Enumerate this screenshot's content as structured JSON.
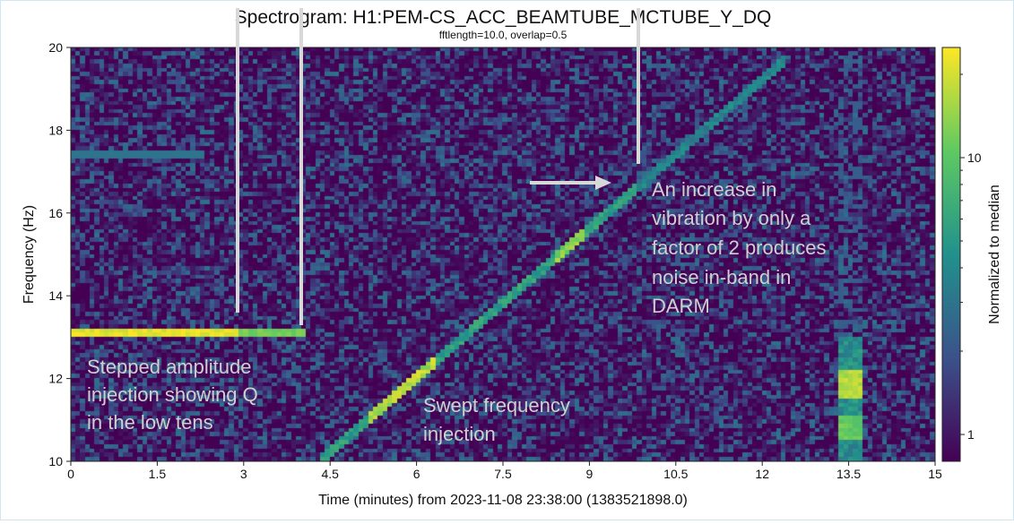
{
  "chart_data": {
    "type": "heatmap",
    "title": "Spectrogram: H1:PEM-CS_ACC_BEAMTUBE_MCTUBE_Y_DQ",
    "subtitle": "fftlength=10.0, overlap=0.5",
    "xlabel": "Time (minutes) from 2023-11-08 23:38:00 (1383521898.0)",
    "ylabel": "Frequency (Hz)",
    "xlim": [
      0,
      15
    ],
    "ylim": [
      10,
      20
    ],
    "x_ticks": [
      0,
      1.5,
      3,
      4.5,
      6,
      7.5,
      9,
      10.5,
      12,
      13.5,
      15
    ],
    "x_tick_labels": [
      "0",
      "1.5",
      "3",
      "4.5",
      "6",
      "7.5",
      "9",
      "10.5",
      "12",
      "13.5",
      "15"
    ],
    "y_ticks": [
      10,
      12,
      14,
      16,
      18,
      20
    ],
    "y_tick_labels": [
      "10",
      "12",
      "14",
      "16",
      "18",
      "20"
    ],
    "colorbar": {
      "label": "Normalized to median",
      "scale": "log",
      "range": [
        0.8,
        25
      ],
      "ticks": [
        1,
        10
      ],
      "tick_labels": [
        "1",
        "10"
      ],
      "colors": [
        "#440154",
        "#3b528b",
        "#21918c",
        "#5ec962",
        "#fde725"
      ]
    },
    "features": {
      "stepped_line": {
        "frequency": 13.1,
        "segments": [
          {
            "t_start": 0,
            "t_end": 2.9,
            "level": 22
          },
          {
            "t_start": 2.9,
            "t_end": 4.1,
            "level": 12
          }
        ]
      },
      "faint_line": {
        "frequency": 17.4,
        "t_start": 0,
        "t_end": 2.3,
        "level": 3
      },
      "sweep": {
        "t_start": 4.35,
        "f_start": 10.0,
        "t_end": 12.4,
        "f_end": 19.7
      },
      "burst": {
        "t_start": 13.35,
        "t_end": 13.75,
        "f_start": 10.0,
        "f_end": 13.0
      }
    }
  },
  "annotations": {
    "stepped": [
      "Stepped amplitude",
      "injection showing Q",
      "in the low tens"
    ],
    "swept": [
      "Swept frequency",
      "injection"
    ],
    "increase": [
      "An increase in",
      "vibration by only a",
      "factor of 2 produces",
      "noise in-band  in",
      "DARM"
    ]
  }
}
